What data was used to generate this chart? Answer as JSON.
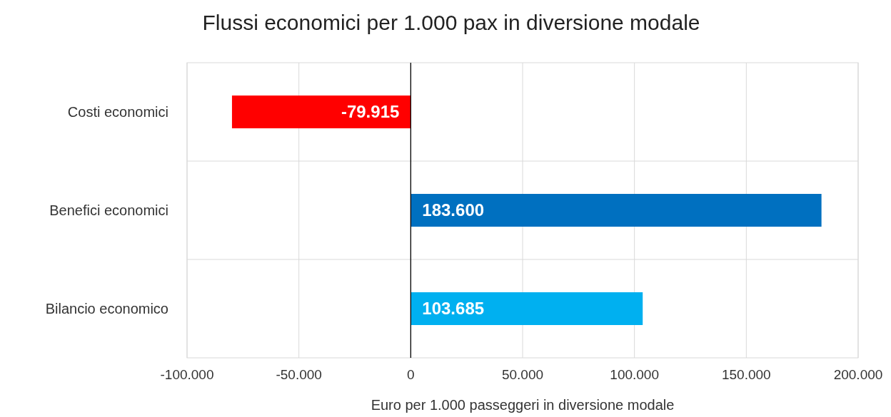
{
  "chart_data": {
    "type": "bar",
    "orientation": "horizontal",
    "title": "Flussi economici per 1.000 pax in diversione modale",
    "xlabel": "Euro per 1.000 passeggeri in diversione modale",
    "categories": [
      "Costi economici",
      "Benefici economici",
      "Bilancio economico"
    ],
    "values": [
      -79915,
      183600,
      103685
    ],
    "colors": [
      "#ff0000",
      "#0070c0",
      "#00b0f0"
    ],
    "value_labels": [
      "-79.915",
      "183.600",
      "103.685"
    ],
    "xlim": [
      -100000,
      200000
    ],
    "xticks": [
      {
        "value": -100000,
        "label": "-100.000"
      },
      {
        "value": -50000,
        "label": "-50.000"
      },
      0,
      {
        "value": 50000,
        "label": "50.000"
      },
      {
        "value": 100000,
        "label": "100.000"
      },
      {
        "value": 150000,
        "label": "150.000"
      },
      {
        "value": 200000,
        "label": "200.000"
      }
    ],
    "grid": true
  }
}
